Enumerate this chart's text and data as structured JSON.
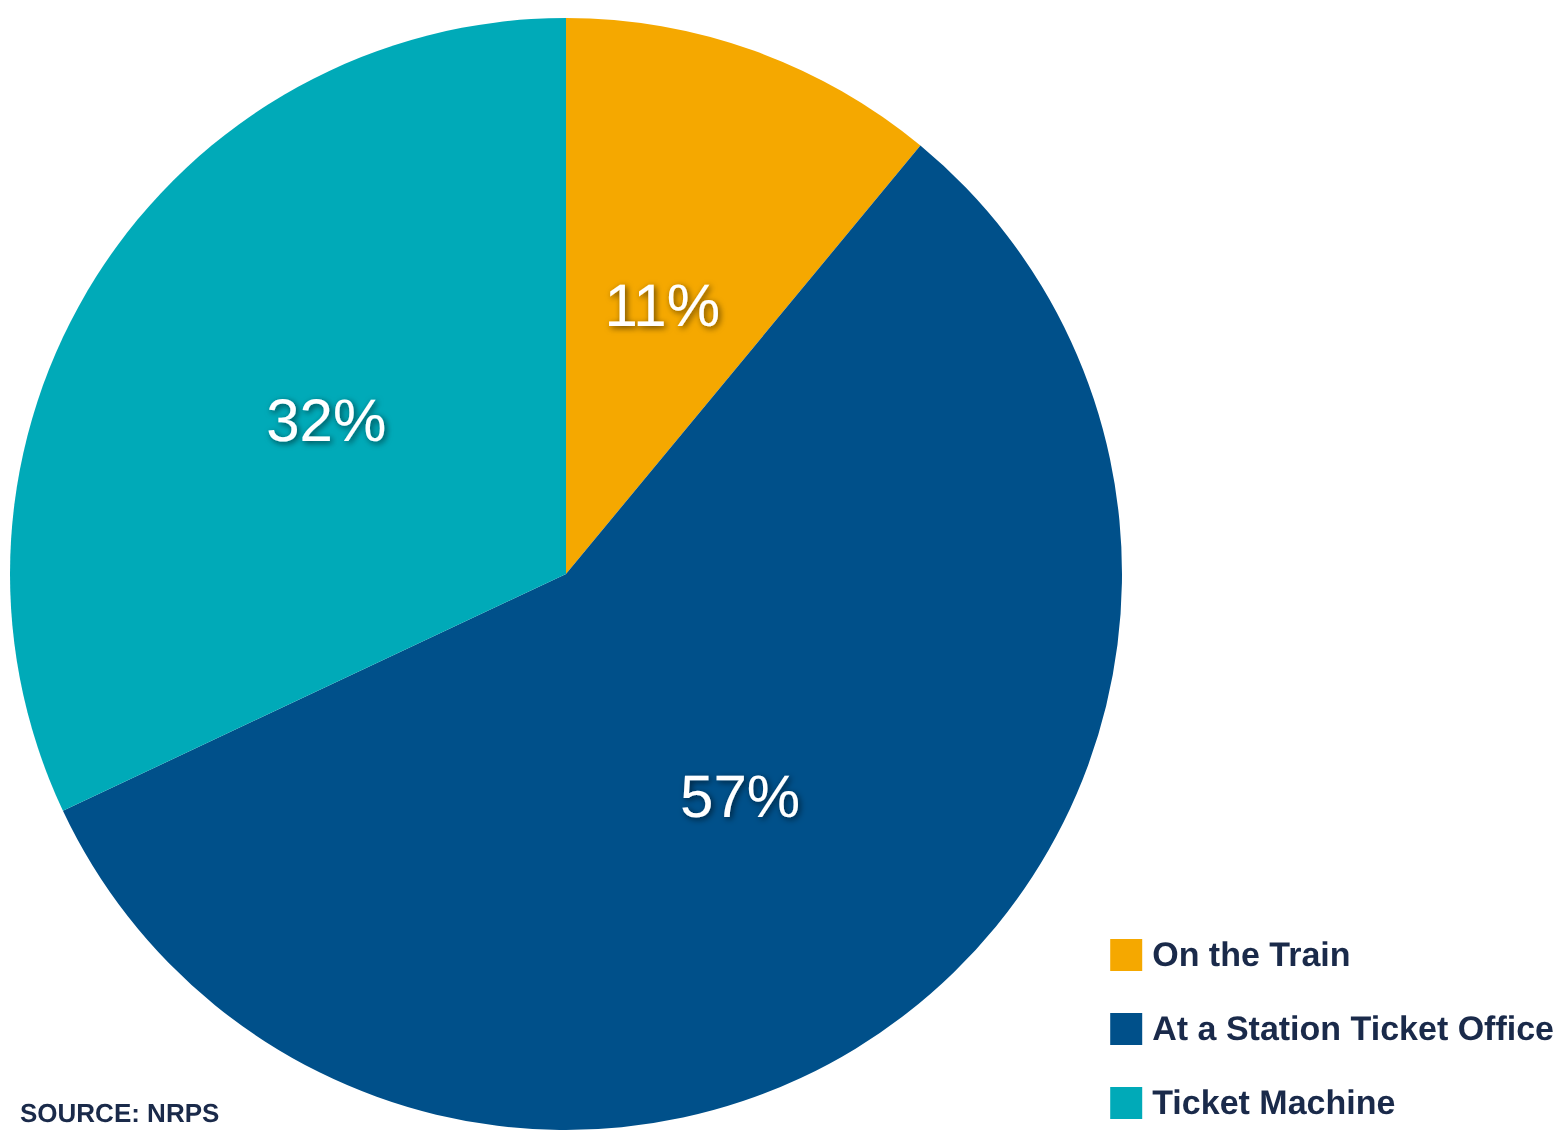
{
  "chart_data": {
    "type": "pie",
    "categories": [
      "On the Train",
      "At a Station Ticket Office",
      "Ticket Machine"
    ],
    "values": [
      11,
      57,
      32
    ],
    "value_labels": [
      "11%",
      "57%",
      "32%"
    ],
    "colors": [
      "#f5a800",
      "#00508a",
      "#00aab8"
    ],
    "legend": "bottom right",
    "annotations": [
      "SOURCE: NRPS"
    ]
  }
}
